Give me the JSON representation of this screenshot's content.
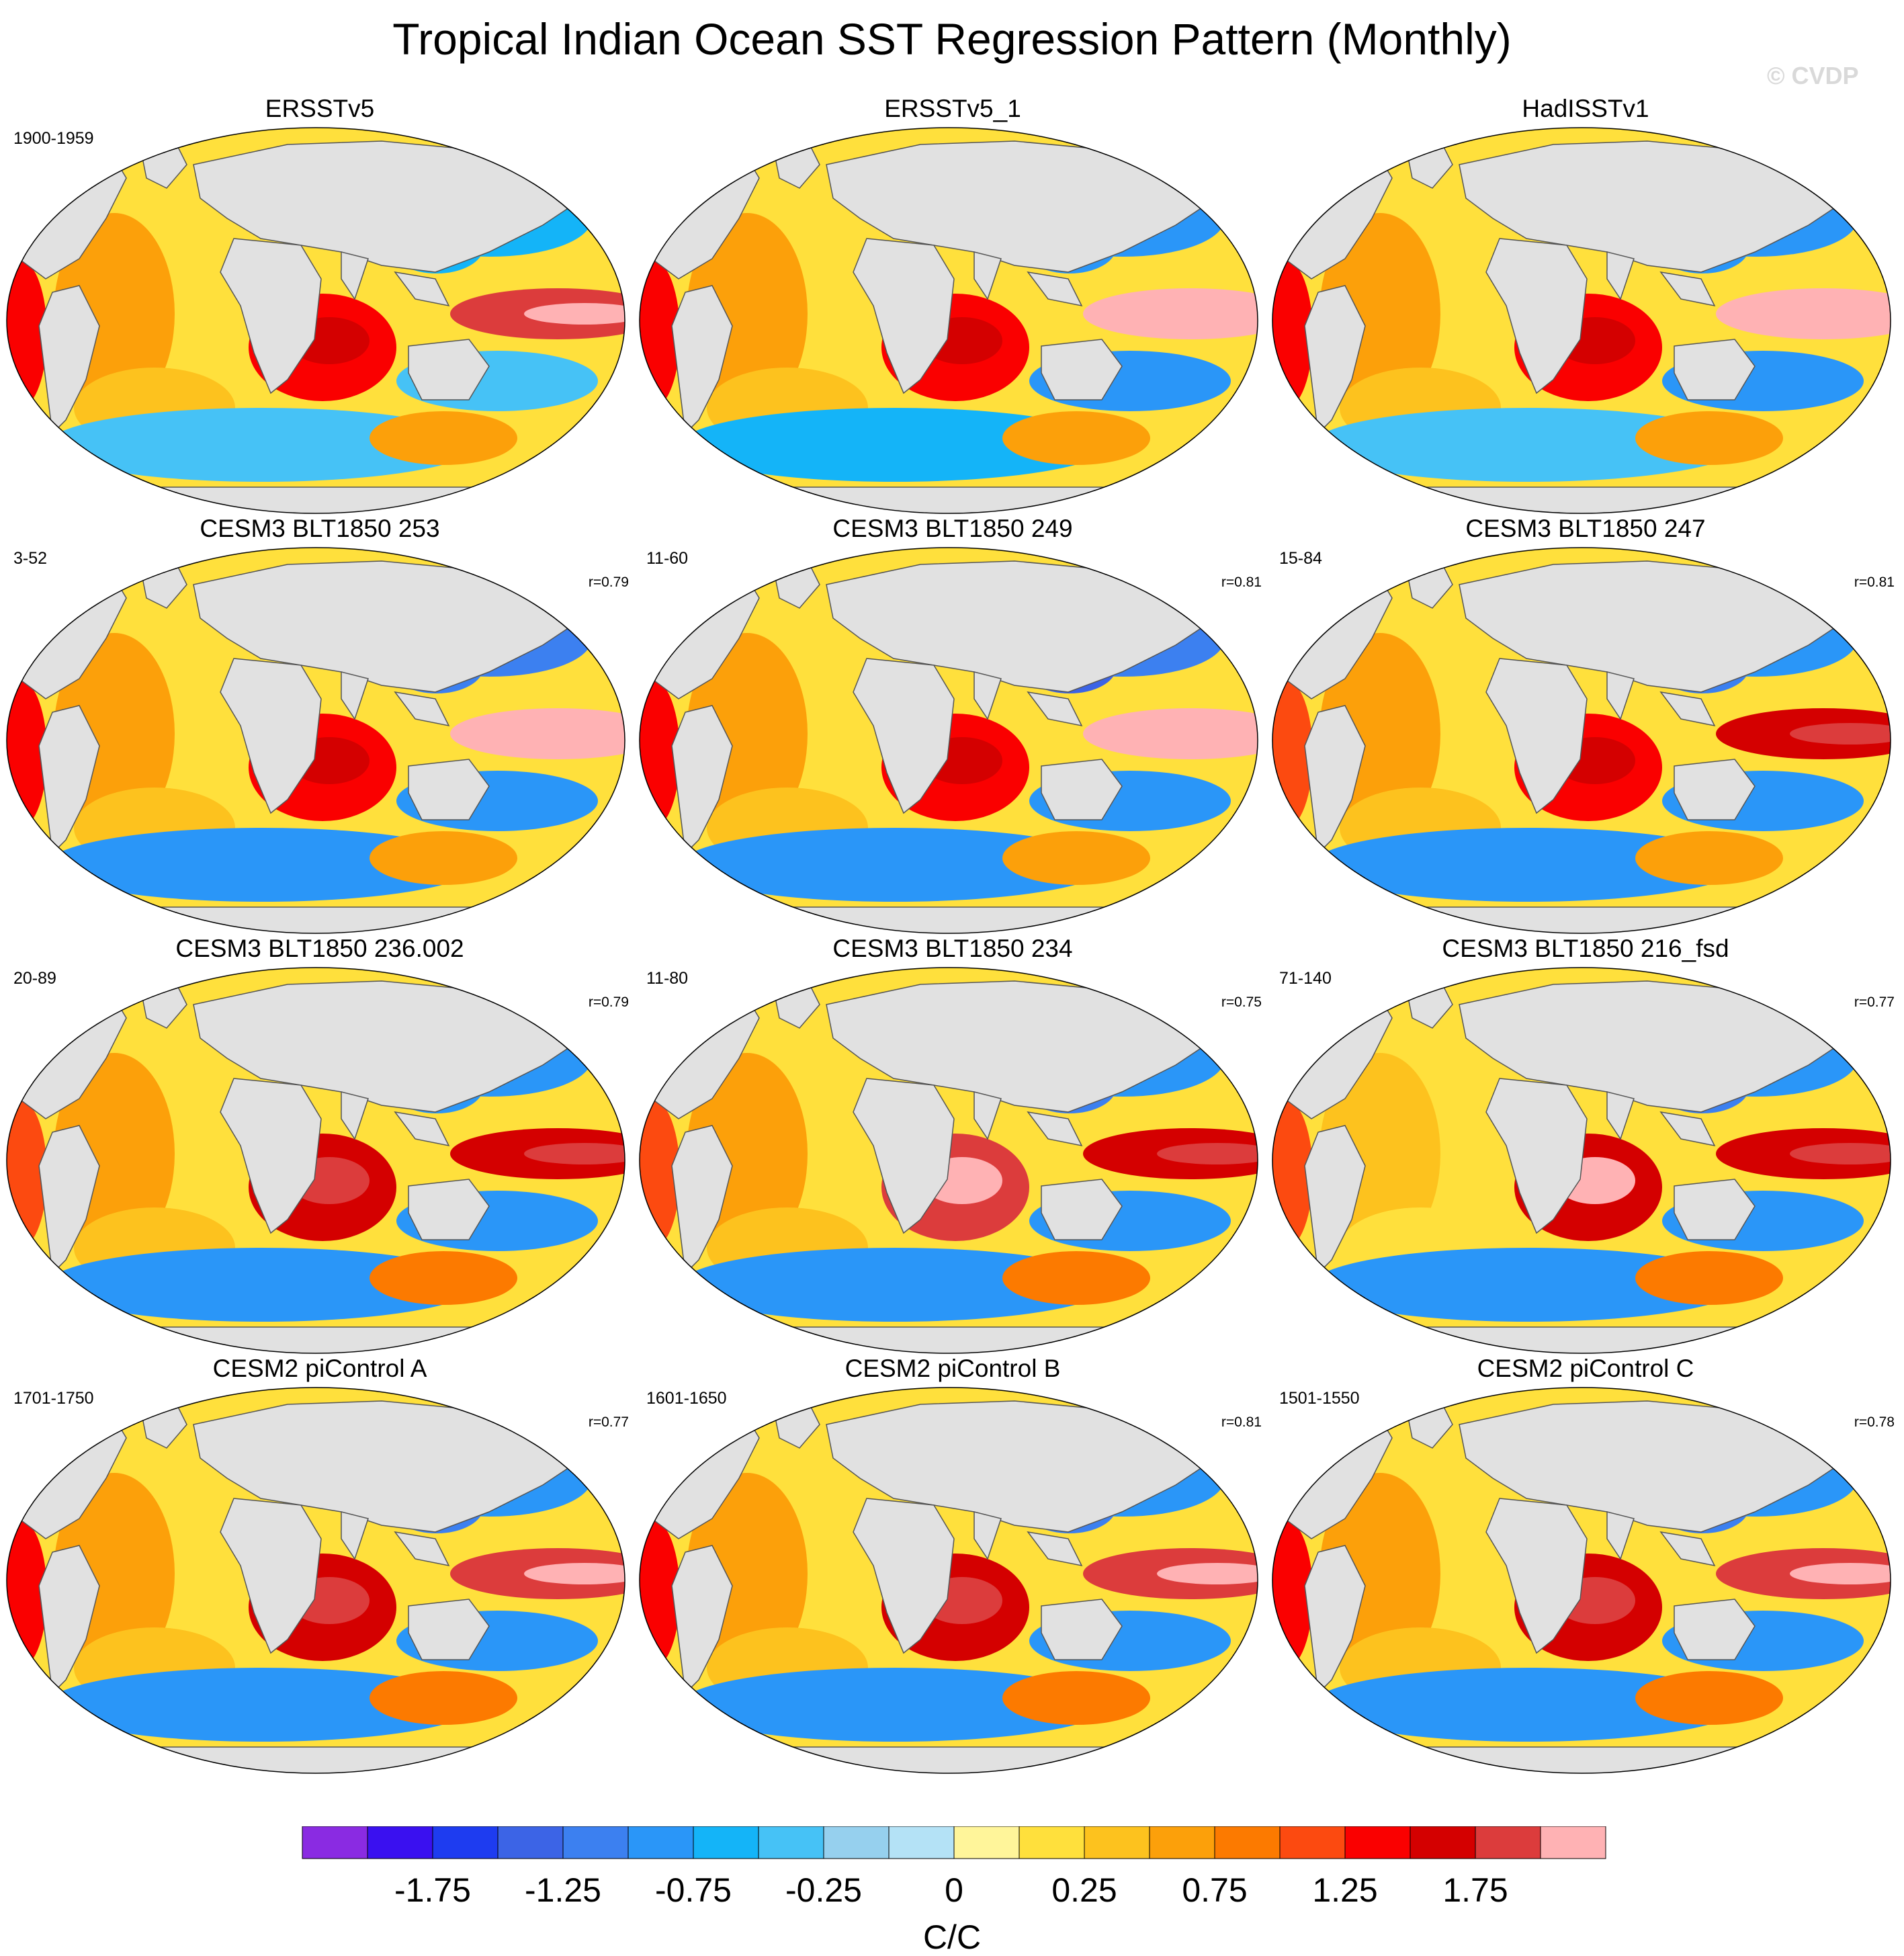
{
  "figure": {
    "title": "Tropical Indian Ocean SST Regression Pattern (Monthly)",
    "watermark": "© CVDP"
  },
  "chart_data": {
    "type": "contour-map-grid",
    "variable": "SST regression onto Tropical Indian Ocean index",
    "units": "C/C",
    "panels": [
      {
        "title": "ERSSTv5",
        "period": "1900-1959",
        "pattern_r": "",
        "features": {
          "indian_ocean": 1.4,
          "east_pacific": 1.8,
          "north_pacific": -0.6,
          "south_pacific": -0.5,
          "atlantic": 0.5,
          "southern_ocean": -0.4
        }
      },
      {
        "title": "ERSSTv5_1",
        "period": "",
        "pattern_r": "",
        "features": {
          "indian_ocean": 1.4,
          "east_pacific": 2.1,
          "north_pacific": -0.9,
          "south_pacific": -0.8,
          "atlantic": 0.5,
          "southern_ocean": -0.6
        }
      },
      {
        "title": "HadISSTv1",
        "period": "",
        "pattern_r": "",
        "features": {
          "indian_ocean": 1.3,
          "east_pacific": 2.1,
          "north_pacific": -0.8,
          "south_pacific": -0.8,
          "atlantic": 0.6,
          "southern_ocean": -0.5
        }
      },
      {
        "title": "CESM3 BLT1850 253",
        "period": "3-52",
        "pattern_r": "r=0.79",
        "features": {
          "indian_ocean": 1.4,
          "east_pacific": 2.0,
          "north_pacific": -1.1,
          "south_pacific": -0.9,
          "atlantic": 0.7,
          "southern_ocean": -0.8
        }
      },
      {
        "title": "CESM3 BLT1850 249",
        "period": "11-60",
        "pattern_r": "r=0.81",
        "features": {
          "indian_ocean": 1.4,
          "east_pacific": 2.1,
          "north_pacific": -1.2,
          "south_pacific": -0.9,
          "atlantic": 0.7,
          "southern_ocean": -0.8
        }
      },
      {
        "title": "CESM3 BLT1850 247",
        "period": "15-84",
        "pattern_r": "r=0.81",
        "features": {
          "indian_ocean": 1.4,
          "east_pacific": 1.7,
          "north_pacific": -1.0,
          "south_pacific": -0.9,
          "atlantic": 0.6,
          "southern_ocean": -0.8
        }
      },
      {
        "title": "CESM3 BLT1850 236.002",
        "period": "20-89",
        "pattern_r": "r=0.79",
        "features": {
          "indian_ocean": 1.5,
          "east_pacific": 1.6,
          "north_pacific": -0.9,
          "south_pacific": -0.9,
          "atlantic": 0.5,
          "southern_ocean": -0.9
        }
      },
      {
        "title": "CESM3 BLT1850 234",
        "period": "11-80",
        "pattern_r": "r=0.75",
        "features": {
          "indian_ocean": 1.8,
          "east_pacific": 1.6,
          "north_pacific": -1.0,
          "south_pacific": -1.0,
          "atlantic": 0.5,
          "southern_ocean": -0.8
        }
      },
      {
        "title": "CESM3 BLT1850 216_fsd",
        "period": "71-140",
        "pattern_r": "r=0.77",
        "features": {
          "indian_ocean": 1.7,
          "east_pacific": 1.6,
          "north_pacific": -1.0,
          "south_pacific": -0.9,
          "atlantic": 0.4,
          "southern_ocean": -0.9
        }
      },
      {
        "title": "CESM2 piControl A",
        "period": "1701-1750",
        "pattern_r": "r=0.77",
        "features": {
          "indian_ocean": 1.6,
          "east_pacific": 1.9,
          "north_pacific": -1.0,
          "south_pacific": -1.0,
          "atlantic": 0.6,
          "southern_ocean": -0.8
        }
      },
      {
        "title": "CESM2 piControl B",
        "period": "1601-1650",
        "pattern_r": "r=0.81",
        "features": {
          "indian_ocean": 1.5,
          "east_pacific": 1.8,
          "north_pacific": -1.0,
          "south_pacific": -1.0,
          "atlantic": 0.6,
          "southern_ocean": -0.8
        }
      },
      {
        "title": "CESM2 piControl C",
        "period": "1501-1550",
        "pattern_r": "r=0.78",
        "features": {
          "indian_ocean": 1.6,
          "east_pacific": 1.8,
          "north_pacific": -1.0,
          "south_pacific": -1.0,
          "atlantic": 0.7,
          "southern_ocean": -0.8
        }
      }
    ],
    "colorbar": {
      "levels": [
        -2.0,
        -1.75,
        -1.5,
        -1.25,
        -1.0,
        -0.75,
        -0.5,
        -0.25,
        -0.125,
        0,
        0.125,
        0.25,
        0.5,
        0.75,
        1.0,
        1.25,
        1.5,
        1.75,
        2.0
      ],
      "colors": [
        "#8a2be2",
        "#3a10f0",
        "#1e3cf0",
        "#3c64e6",
        "#3c80f0",
        "#2a96f8",
        "#14b4f8",
        "#46c2f6",
        "#96d0ee",
        "#b4e2f6",
        "#fff59a",
        "#ffe03c",
        "#fdc21e",
        "#fca00a",
        "#fc7a00",
        "#fc4a10",
        "#fa0000",
        "#d40000",
        "#dc3c3c",
        "#ffb2b4"
      ],
      "tick_labels": [
        "-1.75",
        "-1.25",
        "-0.75",
        "-0.25",
        "0",
        "0.25",
        "0.75",
        "1.25",
        "1.75"
      ],
      "label": "C/C"
    }
  }
}
